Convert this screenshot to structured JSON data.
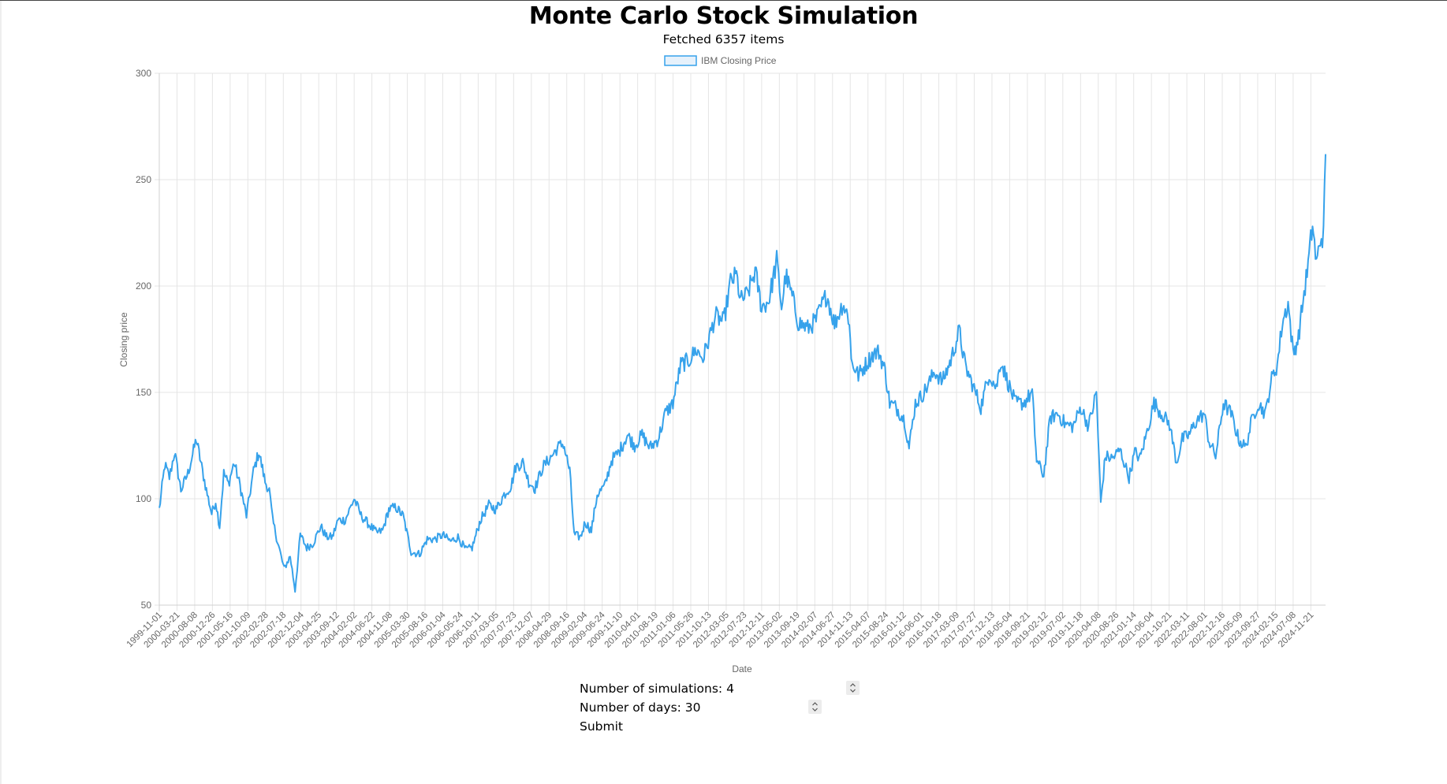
{
  "header": {
    "title": "Monte Carlo Stock Simulation",
    "fetched": "Fetched 6357 items"
  },
  "form": {
    "simulations_label": "Number of simulations: 4",
    "days_label": "Number of days: 30",
    "submit_label": "Submit"
  },
  "chart_data": {
    "type": "line",
    "title": "",
    "xlabel": "Date",
    "ylabel": "Closing price",
    "ylim": [
      50,
      300
    ],
    "yticks": [
      50,
      100,
      150,
      200,
      250,
      300
    ],
    "grid": true,
    "legend": "top-center",
    "x_tick_labels": [
      "1999-11-01",
      "2000-03-21",
      "2000-08-08",
      "2000-12-26",
      "2001-05-16",
      "2001-10-09",
      "2002-02-28",
      "2002-07-18",
      "2002-12-04",
      "2003-04-25",
      "2003-09-12",
      "2004-02-02",
      "2004-06-22",
      "2004-11-08",
      "2005-03-30",
      "2005-08-16",
      "2006-01-04",
      "2006-05-24",
      "2006-10-11",
      "2007-03-05",
      "2007-07-23",
      "2007-12-07",
      "2008-04-29",
      "2008-09-16",
      "2009-02-04",
      "2009-06-24",
      "2009-11-10",
      "2010-04-01",
      "2010-08-19",
      "2011-01-06",
      "2011-05-26",
      "2011-10-13",
      "2012-03-05",
      "2012-07-23",
      "2012-12-11",
      "2013-05-02",
      "2013-09-19",
      "2014-02-07",
      "2014-06-27",
      "2014-11-13",
      "2015-04-07",
      "2015-08-24",
      "2016-01-12",
      "2016-06-01",
      "2016-10-18",
      "2017-03-09",
      "2017-07-27",
      "2017-12-13",
      "2018-05-04",
      "2018-09-21",
      "2019-02-12",
      "2019-07-02",
      "2019-11-18",
      "2020-04-08",
      "2020-08-26",
      "2021-01-14",
      "2021-06-04",
      "2021-10-21",
      "2022-03-11",
      "2022-08-01",
      "2022-12-16",
      "2023-05-09",
      "2023-09-27",
      "2024-02-15",
      "2024-07-08",
      "2024-11-21"
    ],
    "series": [
      {
        "name": "IBM Closing Price",
        "color": "#36a2eb",
        "points": [
          [
            "1999-11-01",
            95
          ],
          [
            "1999-12-15",
            116
          ],
          [
            "2000-01-20",
            110
          ],
          [
            "2000-03-01",
            122
          ],
          [
            "2000-04-20",
            104
          ],
          [
            "2000-06-15",
            112
          ],
          [
            "2000-08-20",
            128
          ],
          [
            "2000-10-01",
            115
          ],
          [
            "2000-11-15",
            102
          ],
          [
            "2000-12-20",
            93
          ],
          [
            "2001-01-20",
            99
          ],
          [
            "2001-02-20",
            87
          ],
          [
            "2001-03-25",
            112
          ],
          [
            "2001-05-01",
            107
          ],
          [
            "2001-06-15",
            117
          ],
          [
            "2001-08-01",
            106
          ],
          [
            "2001-09-20",
            92
          ],
          [
            "2001-11-15",
            113
          ],
          [
            "2001-12-28",
            122
          ],
          [
            "2002-02-15",
            108
          ],
          [
            "2002-03-20",
            104
          ],
          [
            "2002-04-15",
            90
          ],
          [
            "2002-06-01",
            78
          ],
          [
            "2002-07-15",
            67
          ],
          [
            "2002-09-01",
            73
          ],
          [
            "2002-10-10",
            57
          ],
          [
            "2002-11-20",
            83
          ],
          [
            "2003-01-10",
            77
          ],
          [
            "2003-03-01",
            79
          ],
          [
            "2003-05-01",
            87
          ],
          [
            "2003-06-15",
            82
          ],
          [
            "2003-08-01",
            82
          ],
          [
            "2003-09-15",
            90
          ],
          [
            "2003-11-10",
            90
          ],
          [
            "2004-01-20",
            100
          ],
          [
            "2004-03-15",
            92
          ],
          [
            "2004-05-15",
            88
          ],
          [
            "2004-07-15",
            84
          ],
          [
            "2004-09-01",
            85
          ],
          [
            "2004-10-20",
            95
          ],
          [
            "2004-12-15",
            96
          ],
          [
            "2005-02-10",
            92
          ],
          [
            "2005-04-15",
            75
          ],
          [
            "2005-06-20",
            74
          ],
          [
            "2005-08-20",
            81
          ],
          [
            "2005-10-20",
            81
          ],
          [
            "2005-12-20",
            83
          ],
          [
            "2006-02-20",
            80
          ],
          [
            "2006-04-20",
            82
          ],
          [
            "2006-06-20",
            76
          ],
          [
            "2006-08-10",
            77
          ],
          [
            "2006-10-15",
            90
          ],
          [
            "2006-12-20",
            97
          ],
          [
            "2007-02-15",
            95
          ],
          [
            "2007-04-20",
            102
          ],
          [
            "2007-06-15",
            106
          ],
          [
            "2007-07-20",
            115
          ],
          [
            "2007-09-15",
            117
          ],
          [
            "2007-11-01",
            108
          ],
          [
            "2007-12-20",
            105
          ],
          [
            "2008-02-20",
            115
          ],
          [
            "2008-04-30",
            120
          ],
          [
            "2008-06-15",
            124
          ],
          [
            "2008-08-01",
            126
          ],
          [
            "2008-09-20",
            113
          ],
          [
            "2008-10-25",
            83
          ],
          [
            "2008-12-15",
            82
          ],
          [
            "2009-01-20",
            89
          ],
          [
            "2009-03-10",
            85
          ],
          [
            "2009-04-25",
            102
          ],
          [
            "2009-06-25",
            106
          ],
          [
            "2009-08-15",
            118
          ],
          [
            "2009-10-15",
            122
          ],
          [
            "2009-12-20",
            130
          ],
          [
            "2010-02-15",
            125
          ],
          [
            "2010-04-15",
            130
          ],
          [
            "2010-06-15",
            124
          ],
          [
            "2010-08-20",
            128
          ],
          [
            "2010-10-15",
            140
          ],
          [
            "2010-12-15",
            145
          ],
          [
            "2011-02-15",
            163
          ],
          [
            "2011-04-20",
            165
          ],
          [
            "2011-06-15",
            170
          ],
          [
            "2011-08-10",
            166
          ],
          [
            "2011-09-20",
            174
          ],
          [
            "2011-11-15",
            186
          ],
          [
            "2012-01-20",
            183
          ],
          [
            "2012-03-15",
            202
          ],
          [
            "2012-05-01",
            205
          ],
          [
            "2012-06-01",
            193
          ],
          [
            "2012-07-25",
            196
          ],
          [
            "2012-09-25",
            207
          ],
          [
            "2012-11-15",
            190
          ],
          [
            "2013-01-10",
            193
          ],
          [
            "2013-03-15",
            212
          ],
          [
            "2013-04-22",
            190
          ],
          [
            "2013-05-25",
            205
          ],
          [
            "2013-07-15",
            195
          ],
          [
            "2013-09-01",
            183
          ],
          [
            "2013-11-15",
            180
          ],
          [
            "2014-01-20",
            184
          ],
          [
            "2014-03-01",
            190
          ],
          [
            "2014-04-15",
            196
          ],
          [
            "2014-06-15",
            182
          ],
          [
            "2014-08-20",
            192
          ],
          [
            "2014-10-10",
            184
          ],
          [
            "2014-10-25",
            165
          ],
          [
            "2014-12-20",
            158
          ],
          [
            "2015-02-15",
            163
          ],
          [
            "2015-04-15",
            168
          ],
          [
            "2015-06-01",
            169
          ],
          [
            "2015-07-20",
            160
          ],
          [
            "2015-08-25",
            145
          ],
          [
            "2015-10-15",
            143
          ],
          [
            "2015-12-20",
            137
          ],
          [
            "2016-01-25",
            124
          ],
          [
            "2016-03-15",
            145
          ],
          [
            "2016-05-01",
            148
          ],
          [
            "2016-06-20",
            153
          ],
          [
            "2016-08-15",
            160
          ],
          [
            "2016-10-15",
            155
          ],
          [
            "2016-12-20",
            165
          ],
          [
            "2017-02-25",
            179
          ],
          [
            "2017-04-15",
            162
          ],
          [
            "2017-06-15",
            153
          ],
          [
            "2017-08-15",
            143
          ],
          [
            "2017-10-20",
            159
          ],
          [
            "2017-12-15",
            152
          ],
          [
            "2018-01-20",
            165
          ],
          [
            "2018-03-15",
            155
          ],
          [
            "2018-05-15",
            145
          ],
          [
            "2018-07-20",
            145
          ],
          [
            "2018-09-25",
            150
          ],
          [
            "2018-10-30",
            118
          ],
          [
            "2018-12-25",
            111
          ],
          [
            "2019-02-15",
            138
          ],
          [
            "2019-04-15",
            140
          ],
          [
            "2019-06-15",
            135
          ],
          [
            "2019-08-15",
            134
          ],
          [
            "2019-10-15",
            143
          ],
          [
            "2019-12-15",
            134
          ],
          [
            "2020-02-15",
            150
          ],
          [
            "2020-03-20",
            98
          ],
          [
            "2020-04-25",
            120
          ],
          [
            "2020-06-20",
            119
          ],
          [
            "2020-08-20",
            123
          ],
          [
            "2020-10-30",
            110
          ],
          [
            "2020-12-15",
            122
          ],
          [
            "2021-01-25",
            119
          ],
          [
            "2021-03-15",
            130
          ],
          [
            "2021-05-15",
            145
          ],
          [
            "2021-07-15",
            140
          ],
          [
            "2021-09-15",
            135
          ],
          [
            "2021-11-10",
            117
          ],
          [
            "2021-12-25",
            128
          ],
          [
            "2022-02-15",
            130
          ],
          [
            "2022-04-20",
            137
          ],
          [
            "2022-06-15",
            140
          ],
          [
            "2022-07-25",
            127
          ],
          [
            "2022-09-15",
            120
          ],
          [
            "2022-11-15",
            145
          ],
          [
            "2023-01-15",
            140
          ],
          [
            "2023-03-15",
            128
          ],
          [
            "2023-05-10",
            124
          ],
          [
            "2023-06-20",
            135
          ],
          [
            "2023-08-15",
            145
          ],
          [
            "2023-10-15",
            140
          ],
          [
            "2023-11-25",
            155
          ],
          [
            "2024-01-15",
            163
          ],
          [
            "2024-02-25",
            183
          ],
          [
            "2024-04-10",
            192
          ],
          [
            "2024-05-20",
            168
          ],
          [
            "2024-07-01",
            176
          ],
          [
            "2024-07-30",
            190
          ],
          [
            "2024-09-15",
            210
          ],
          [
            "2024-10-20",
            229
          ],
          [
            "2024-11-20",
            210
          ],
          [
            "2024-12-20",
            222
          ],
          [
            "2025-01-15",
            224
          ],
          [
            "2025-01-31",
            262
          ]
        ]
      }
    ]
  }
}
